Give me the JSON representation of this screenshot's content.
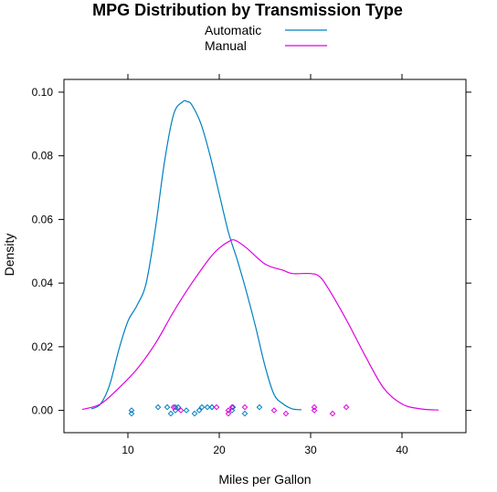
{
  "chart_data": {
    "type": "line",
    "subtype": "density",
    "title": "MPG Distribution by Transmission Type",
    "xlabel": "Miles per Gallon",
    "ylabel": "Density",
    "xlim": [
      3,
      47
    ],
    "ylim": [
      -0.007,
      0.104
    ],
    "xticks": [
      10,
      20,
      30,
      40
    ],
    "yticks": [
      0.0,
      0.02,
      0.04,
      0.06,
      0.08,
      0.1
    ],
    "ytick_labels": [
      "0.00",
      "0.02",
      "0.04",
      "0.06",
      "0.08",
      "0.10"
    ],
    "grid": false,
    "legend_position": "top",
    "series": [
      {
        "name": "Automatic",
        "color": "#0080C0",
        "x": [
          6.0,
          7.0,
          8.0,
          9.0,
          10.0,
          11.0,
          12.0,
          13.0,
          14.0,
          15.0,
          16.0,
          16.5,
          17.0,
          18.0,
          19.0,
          20.0,
          21.0,
          22.0,
          23.0,
          24.0,
          25.0,
          26.0,
          27.0,
          28.0,
          29.0
        ],
        "y": [
          0.0005,
          0.002,
          0.008,
          0.019,
          0.028,
          0.033,
          0.04,
          0.057,
          0.078,
          0.093,
          0.097,
          0.097,
          0.096,
          0.09,
          0.08,
          0.068,
          0.056,
          0.047,
          0.037,
          0.026,
          0.014,
          0.005,
          0.002,
          0.0005,
          0.0002
        ]
      },
      {
        "name": "Manual",
        "color": "#E000E0",
        "x": [
          5.0,
          7.0,
          9.0,
          11.0,
          13.0,
          15.0,
          17.0,
          19.0,
          20.0,
          21.0,
          21.7,
          23.0,
          25.0,
          27.0,
          28.0,
          30.0,
          31.0,
          32.0,
          34.0,
          36.0,
          38.0,
          40.0,
          42.0,
          44.0
        ],
        "y": [
          0.0003,
          0.002,
          0.007,
          0.013,
          0.021,
          0.031,
          0.04,
          0.048,
          0.051,
          0.053,
          0.0535,
          0.051,
          0.046,
          0.044,
          0.043,
          0.043,
          0.042,
          0.038,
          0.028,
          0.017,
          0.007,
          0.002,
          0.0005,
          0.0001
        ]
      }
    ],
    "rug_points": [
      {
        "series": "Automatic",
        "x": 10.4,
        "y": 0.0
      },
      {
        "series": "Automatic",
        "x": 10.4,
        "y": -0.001
      },
      {
        "series": "Automatic",
        "x": 13.3,
        "y": 0.001
      },
      {
        "series": "Automatic",
        "x": 14.3,
        "y": 0.001
      },
      {
        "series": "Automatic",
        "x": 14.7,
        "y": -0.001
      },
      {
        "series": "Automatic",
        "x": 15.2,
        "y": 0.001
      },
      {
        "series": "Automatic",
        "x": 15.2,
        "y": 0.0
      },
      {
        "series": "Automatic",
        "x": 15.5,
        "y": 0.001
      },
      {
        "series": "Automatic",
        "x": 16.4,
        "y": 0.0
      },
      {
        "series": "Automatic",
        "x": 17.3,
        "y": -0.001
      },
      {
        "series": "Automatic",
        "x": 17.8,
        "y": 0.0
      },
      {
        "series": "Automatic",
        "x": 18.1,
        "y": 0.001
      },
      {
        "series": "Automatic",
        "x": 18.7,
        "y": 0.001
      },
      {
        "series": "Automatic",
        "x": 19.2,
        "y": 0.001
      },
      {
        "series": "Automatic",
        "x": 19.2,
        "y": 0.001
      },
      {
        "series": "Automatic",
        "x": 21.4,
        "y": 0.0
      },
      {
        "series": "Automatic",
        "x": 21.5,
        "y": 0.001
      },
      {
        "series": "Automatic",
        "x": 22.8,
        "y": -0.001
      },
      {
        "series": "Automatic",
        "x": 24.4,
        "y": 0.001
      },
      {
        "series": "Manual",
        "x": 15.0,
        "y": 0.001
      },
      {
        "series": "Manual",
        "x": 15.8,
        "y": 0.0
      },
      {
        "series": "Manual",
        "x": 19.7,
        "y": 0.001
      },
      {
        "series": "Manual",
        "x": 21.0,
        "y": -0.001
      },
      {
        "series": "Manual",
        "x": 21.0,
        "y": 0.0
      },
      {
        "series": "Manual",
        "x": 21.4,
        "y": 0.001
      },
      {
        "series": "Manual",
        "x": 22.8,
        "y": 0.001
      },
      {
        "series": "Manual",
        "x": 26.0,
        "y": 0.0
      },
      {
        "series": "Manual",
        "x": 27.3,
        "y": -0.001
      },
      {
        "series": "Manual",
        "x": 30.4,
        "y": 0.001
      },
      {
        "series": "Manual",
        "x": 30.4,
        "y": 0.0
      },
      {
        "series": "Manual",
        "x": 32.4,
        "y": -0.001
      },
      {
        "series": "Manual",
        "x": 33.9,
        "y": 0.001
      }
    ]
  }
}
